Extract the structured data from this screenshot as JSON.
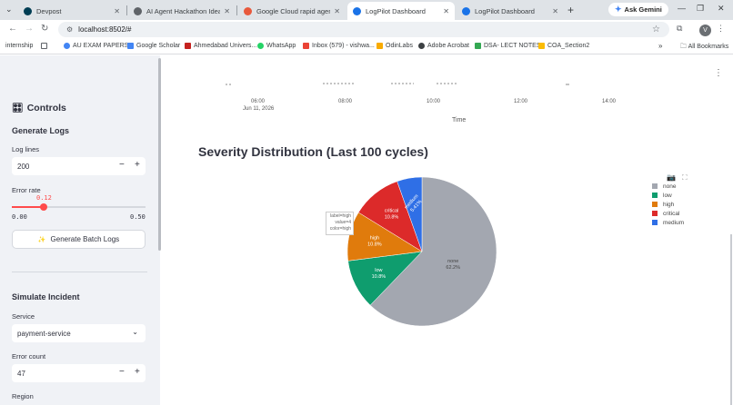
{
  "browser": {
    "tabs": [
      {
        "label": "Devpost",
        "active": false,
        "color": "#003e54"
      },
      {
        "label": "AI Agent Hackathon Ideas",
        "active": false,
        "color": "#5f6368"
      },
      {
        "label": "Google Cloud rapid agent ha",
        "active": false,
        "color": "#e8593c"
      },
      {
        "label": "LogPilot Dashboard",
        "active": true,
        "color": "#1a73e8"
      },
      {
        "label": "LogPilot Dashboard",
        "active": false,
        "color": "#1a73e8"
      }
    ],
    "new_tab": "+",
    "gemini_label": "Ask Gemini",
    "url": "localhost:8502/#",
    "profile_initial": "V",
    "bookmarks": [
      {
        "label": "internship",
        "color": ""
      },
      {
        "label": "",
        "color": "#5f6368"
      },
      {
        "label": "AU EXAM PAPERS",
        "color": "#4285f4"
      },
      {
        "label": "Google Scholar",
        "color": "#4285f4"
      },
      {
        "label": "Ahmedabad Univers...",
        "color": "#c5221f"
      },
      {
        "label": "WhatsApp",
        "color": "#25d366"
      },
      {
        "label": "Inbox (579) - vishwa...",
        "color": "#ea4335"
      },
      {
        "label": "OdinLabs",
        "color": "#f9ab00"
      },
      {
        "label": "Adobe Acrobat",
        "color": "#3c4043"
      },
      {
        "label": "DSA- LECT NOTES",
        "color": "#34a853"
      },
      {
        "label": "COA_Section2",
        "color": "#fbbc04"
      }
    ],
    "all_bookmarks": "All Bookmarks"
  },
  "sidebar": {
    "controls_title": "Controls",
    "generate_title": "Generate Logs",
    "log_lines_label": "Log lines",
    "log_lines_value": "200",
    "error_rate_label": "Error rate",
    "error_rate_value": "0.12",
    "error_rate_min": "0.00",
    "error_rate_max": "0.50",
    "generate_button": "Generate Batch Logs",
    "simulate_title": "Simulate Incident",
    "service_label": "Service",
    "service_value": "payment-service",
    "error_count_label": "Error count",
    "error_count_value": "47",
    "region_label": "Region"
  },
  "timeline": {
    "ticks": [
      "06:00",
      "08:00",
      "10:00",
      "12:00",
      "14:00"
    ],
    "date_label": "Jun 11, 2026",
    "axis_title": "Time"
  },
  "chart_data": {
    "type": "pie",
    "title": "Severity Distribution (Last 100 cycles)",
    "labels": [
      "none",
      "low",
      "high",
      "critical",
      "medium"
    ],
    "values": [
      62.2,
      10.8,
      10.8,
      10.8,
      5.41
    ],
    "colors": [
      "#a3a7b0",
      "#0f9d6e",
      "#e07b0c",
      "#dc2a2a",
      "#2f6fe6"
    ],
    "slice_labels": [
      "none\n62.2%",
      "low\n10.8%",
      "high\n10.8%",
      "critical\n10.8%",
      "medium\n5.41%"
    ],
    "legend_position": "top-right"
  },
  "hover": {
    "line1": "label=high",
    "line2": "value=4",
    "line3": "color=high"
  }
}
